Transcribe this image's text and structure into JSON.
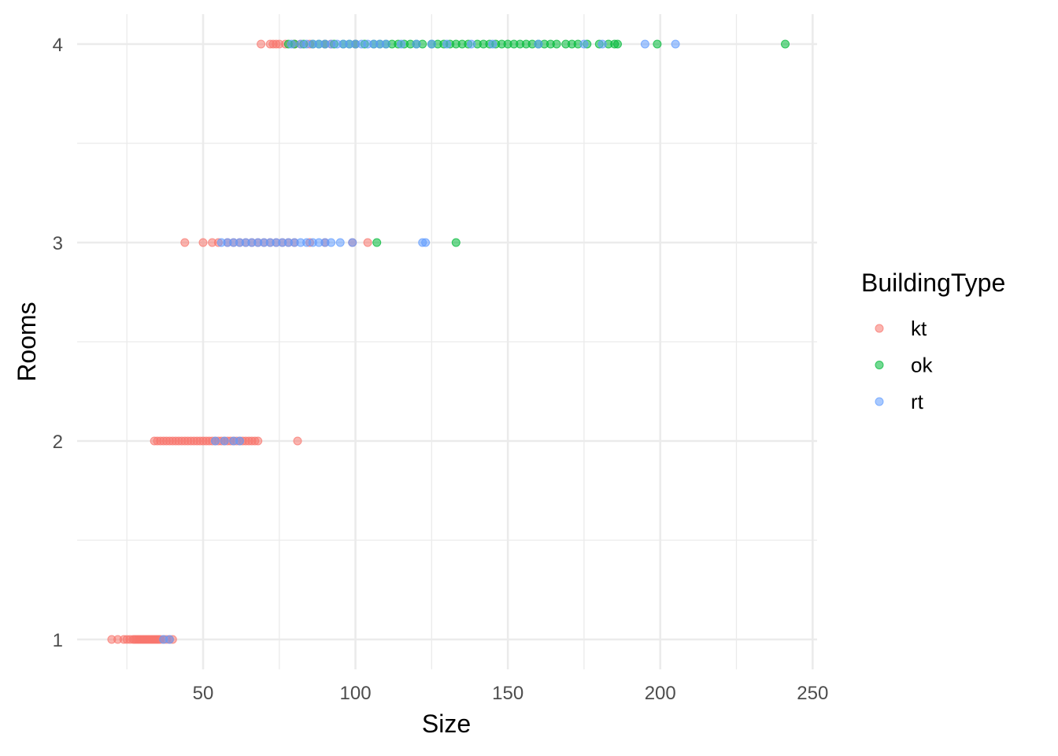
{
  "chart_data": {
    "type": "scatter",
    "title": "",
    "xlabel": "Size",
    "ylabel": "Rooms",
    "xlim": [
      12,
      255
    ],
    "ylim": [
      0.85,
      4.15
    ],
    "x_ticks": [
      50,
      100,
      150,
      200,
      250
    ],
    "x_tick_labels": [
      "50",
      "100",
      "150",
      "200",
      "250"
    ],
    "x_minor_ticks": [
      25,
      75,
      125,
      175,
      225
    ],
    "y_ticks": [
      1,
      2,
      3,
      4
    ],
    "y_tick_labels": [
      "1",
      "2",
      "3",
      "4"
    ],
    "y_minor_ticks": [
      1.5,
      2.5,
      3.5
    ],
    "grid": true,
    "legend": {
      "title": "BuildingType",
      "position": "right"
    },
    "series": [
      {
        "name": "kt",
        "color": "#F8766D",
        "points": [
          [
            20,
            1
          ],
          [
            22,
            1
          ],
          [
            24,
            1
          ],
          [
            25,
            1
          ],
          [
            26,
            1
          ],
          [
            27,
            1
          ],
          [
            27.5,
            1
          ],
          [
            28,
            1
          ],
          [
            28.5,
            1
          ],
          [
            29,
            1
          ],
          [
            29.5,
            1
          ],
          [
            30,
            1
          ],
          [
            30.5,
            1
          ],
          [
            31,
            1
          ],
          [
            31.5,
            1
          ],
          [
            32,
            1
          ],
          [
            32.5,
            1
          ],
          [
            33,
            1
          ],
          [
            33.5,
            1
          ],
          [
            34,
            1
          ],
          [
            34.5,
            1
          ],
          [
            35,
            1
          ],
          [
            35.5,
            1
          ],
          [
            36,
            1
          ],
          [
            37,
            1
          ],
          [
            38,
            1
          ],
          [
            39,
            1
          ],
          [
            40,
            1
          ],
          [
            34,
            2
          ],
          [
            35,
            2
          ],
          [
            36,
            2
          ],
          [
            37,
            2
          ],
          [
            38,
            2
          ],
          [
            39,
            2
          ],
          [
            40,
            2
          ],
          [
            41,
            2
          ],
          [
            42,
            2
          ],
          [
            43,
            2
          ],
          [
            44,
            2
          ],
          [
            45,
            2
          ],
          [
            46,
            2
          ],
          [
            47,
            2
          ],
          [
            48,
            2
          ],
          [
            49,
            2
          ],
          [
            50,
            2
          ],
          [
            51,
            2
          ],
          [
            52,
            2
          ],
          [
            53,
            2
          ],
          [
            54,
            2
          ],
          [
            55,
            2
          ],
          [
            56,
            2
          ],
          [
            57,
            2
          ],
          [
            58,
            2
          ],
          [
            59,
            2
          ],
          [
            60,
            2
          ],
          [
            61,
            2
          ],
          [
            62,
            2
          ],
          [
            63,
            2
          ],
          [
            64,
            2
          ],
          [
            65,
            2
          ],
          [
            66,
            2
          ],
          [
            67,
            2
          ],
          [
            68,
            2
          ],
          [
            81,
            2
          ],
          [
            44,
            3
          ],
          [
            50,
            3
          ],
          [
            53,
            3
          ],
          [
            55,
            3
          ],
          [
            58,
            3
          ],
          [
            60,
            3
          ],
          [
            62,
            3
          ],
          [
            64,
            3
          ],
          [
            66,
            3
          ],
          [
            68,
            3
          ],
          [
            70,
            3
          ],
          [
            72,
            3
          ],
          [
            74,
            3
          ],
          [
            76,
            3
          ],
          [
            78,
            3
          ],
          [
            80,
            3
          ],
          [
            85,
            3
          ],
          [
            90,
            3
          ],
          [
            99,
            3
          ],
          [
            104,
            3
          ],
          [
            69,
            4
          ],
          [
            72,
            4
          ],
          [
            73,
            4
          ],
          [
            74,
            4
          ],
          [
            75,
            4
          ],
          [
            77,
            4
          ],
          [
            80,
            4
          ],
          [
            82,
            4
          ],
          [
            85,
            4
          ],
          [
            90,
            4
          ],
          [
            92,
            4
          ],
          [
            100,
            4
          ]
        ]
      },
      {
        "name": "ok",
        "color": "#00BA38",
        "points": [
          [
            107,
            3
          ],
          [
            133,
            3
          ],
          [
            78,
            4
          ],
          [
            80,
            4
          ],
          [
            83,
            4
          ],
          [
            86,
            4
          ],
          [
            88,
            4
          ],
          [
            90,
            4
          ],
          [
            93,
            4
          ],
          [
            96,
            4
          ],
          [
            98,
            4
          ],
          [
            100,
            4
          ],
          [
            103,
            4
          ],
          [
            106,
            4
          ],
          [
            108,
            4
          ],
          [
            110,
            4
          ],
          [
            112,
            4
          ],
          [
            114,
            4
          ],
          [
            116,
            4
          ],
          [
            118,
            4
          ],
          [
            120,
            4
          ],
          [
            122,
            4
          ],
          [
            125,
            4
          ],
          [
            127,
            4
          ],
          [
            129,
            4
          ],
          [
            131,
            4
          ],
          [
            133,
            4
          ],
          [
            135,
            4
          ],
          [
            137,
            4
          ],
          [
            140,
            4
          ],
          [
            142,
            4
          ],
          [
            144,
            4
          ],
          [
            146,
            4
          ],
          [
            148,
            4
          ],
          [
            150,
            4
          ],
          [
            152,
            4
          ],
          [
            154,
            4
          ],
          [
            156,
            4
          ],
          [
            158,
            4
          ],
          [
            160,
            4
          ],
          [
            162,
            4
          ],
          [
            164,
            4
          ],
          [
            166,
            4
          ],
          [
            169,
            4
          ],
          [
            171,
            4
          ],
          [
            173,
            4
          ],
          [
            176,
            4
          ],
          [
            180,
            4
          ],
          [
            183,
            4
          ],
          [
            185,
            4
          ],
          [
            186,
            4
          ],
          [
            199,
            4
          ],
          [
            241,
            4
          ]
        ]
      },
      {
        "name": "rt",
        "color": "#619CFF",
        "points": [
          [
            37,
            1
          ],
          [
            39,
            1
          ],
          [
            54,
            2
          ],
          [
            57,
            2
          ],
          [
            60,
            2
          ],
          [
            62,
            2
          ],
          [
            56,
            3
          ],
          [
            58,
            3
          ],
          [
            60,
            3
          ],
          [
            62,
            3
          ],
          [
            64,
            3
          ],
          [
            66,
            3
          ],
          [
            68,
            3
          ],
          [
            70,
            3
          ],
          [
            72,
            3
          ],
          [
            74,
            3
          ],
          [
            76,
            3
          ],
          [
            78,
            3
          ],
          [
            80,
            3
          ],
          [
            82,
            3
          ],
          [
            84,
            3
          ],
          [
            86,
            3
          ],
          [
            88,
            3
          ],
          [
            90,
            3
          ],
          [
            92,
            3
          ],
          [
            95,
            3
          ],
          [
            99,
            3
          ],
          [
            122,
            3
          ],
          [
            123,
            3
          ],
          [
            79,
            4
          ],
          [
            82,
            4
          ],
          [
            84,
            4
          ],
          [
            86,
            4
          ],
          [
            88,
            4
          ],
          [
            90,
            4
          ],
          [
            92,
            4
          ],
          [
            94,
            4
          ],
          [
            96,
            4
          ],
          [
            98,
            4
          ],
          [
            100,
            4
          ],
          [
            102,
            4
          ],
          [
            104,
            4
          ],
          [
            106,
            4
          ],
          [
            108,
            4
          ],
          [
            110,
            4
          ],
          [
            115,
            4
          ],
          [
            120,
            4
          ],
          [
            125,
            4
          ],
          [
            130,
            4
          ],
          [
            138,
            4
          ],
          [
            145,
            4
          ],
          [
            160,
            4
          ],
          [
            175,
            4
          ],
          [
            181,
            4
          ],
          [
            195,
            4
          ],
          [
            205,
            4
          ]
        ]
      }
    ]
  }
}
